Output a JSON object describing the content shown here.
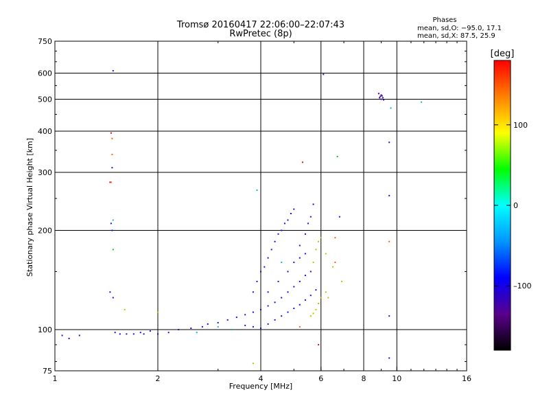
{
  "chart_data": {
    "type": "scatter",
    "title": "Tromsø 20160417 22:06:00–22:07:43",
    "subtitle": "RwPretec (8p)",
    "xlabel": "Frequency [MHz]",
    "ylabel": "Stationary phase Virtual Height [km]",
    "x_scale": "log2",
    "y_scale": "log",
    "xlim": [
      1,
      16
    ],
    "ylim": [
      75,
      750
    ],
    "x_ticks": [
      1,
      2,
      4,
      6,
      8,
      10,
      16
    ],
    "x_tick_labels": [
      "1",
      "2",
      "4",
      "6",
      "8",
      "10",
      "16"
    ],
    "y_ticks": [
      75,
      100,
      200,
      300,
      400,
      500,
      600,
      750
    ],
    "y_tick_labels": [
      "75",
      "100",
      "200",
      "300",
      "400",
      "500",
      "600",
      "750"
    ],
    "grid": true,
    "phases_header": "Phases",
    "phase_stats": [
      "mean, sd,O: −95.0, 17.1",
      "mean, sd,X:  87.5, 25.9"
    ],
    "colorbar": {
      "label": "[deg]",
      "range": [
        -180,
        180
      ],
      "ticks": [
        100,
        0,
        -100
      ],
      "tick_labels": [
        "100",
        "0",
        "–100"
      ],
      "colors": [
        "#000000",
        "#5a008c",
        "#0000ff",
        "#0096ff",
        "#00ffff",
        "#00ff00",
        "#ffff00",
        "#ff8000",
        "#ff0000"
      ]
    },
    "series": [
      {
        "color": "#1010e0",
        "points": [
          [
            1.05,
            96
          ],
          [
            1.1,
            94
          ],
          [
            1.18,
            96
          ],
          [
            1.5,
            98
          ],
          [
            1.55,
            97
          ],
          [
            1.62,
            97
          ],
          [
            1.7,
            97
          ],
          [
            1.78,
            98
          ],
          [
            1.82,
            97
          ],
          [
            1.9,
            99
          ],
          [
            2.0,
            97
          ],
          [
            2.15,
            98
          ],
          [
            2.3,
            100
          ],
          [
            2.5,
            101
          ],
          [
            2.7,
            102
          ],
          [
            2.8,
            104
          ],
          [
            3.0,
            105
          ],
          [
            3.2,
            107
          ],
          [
            3.4,
            109
          ],
          [
            3.6,
            111
          ],
          [
            3.8,
            113
          ],
          [
            4.0,
            115
          ],
          [
            4.2,
            118
          ],
          [
            4.4,
            121
          ],
          [
            4.6,
            125
          ],
          [
            4.8,
            130
          ],
          [
            5.0,
            135
          ],
          [
            5.2,
            140
          ],
          [
            5.4,
            146
          ],
          [
            5.6,
            150
          ],
          [
            3.6,
            103
          ],
          [
            3.8,
            102
          ],
          [
            4.0,
            101
          ],
          [
            4.2,
            104
          ],
          [
            4.4,
            107
          ],
          [
            4.6,
            110
          ],
          [
            4.8,
            113
          ],
          [
            5.0,
            116
          ],
          [
            5.2,
            119
          ],
          [
            5.4,
            123
          ],
          [
            5.6,
            127
          ],
          [
            5.8,
            132
          ],
          [
            3.8,
            130
          ],
          [
            3.9,
            140
          ],
          [
            4.0,
            150
          ],
          [
            4.1,
            155
          ],
          [
            4.2,
            165
          ],
          [
            4.3,
            175
          ],
          [
            4.4,
            185
          ],
          [
            4.5,
            195
          ],
          [
            4.6,
            200
          ],
          [
            4.7,
            210
          ],
          [
            4.8,
            215
          ],
          [
            4.9,
            225
          ],
          [
            5.0,
            232
          ],
          [
            5.2,
            180
          ],
          [
            5.4,
            195
          ],
          [
            5.5,
            210
          ],
          [
            5.6,
            220
          ],
          [
            5.7,
            240
          ],
          [
            4.2,
            130
          ],
          [
            4.5,
            140
          ],
          [
            4.8,
            150
          ],
          [
            5.0,
            160
          ],
          [
            5.2,
            165
          ],
          [
            5.4,
            170
          ],
          [
            1.45,
            130
          ],
          [
            1.48,
            125
          ],
          [
            1.47,
            200
          ],
          [
            1.46,
            210
          ],
          [
            1.47,
            310
          ],
          [
            6.1,
            595
          ],
          [
            1.48,
            610
          ],
          [
            9.5,
            370
          ],
          [
            9.5,
            255
          ],
          [
            9.5,
            110
          ],
          [
            9.5,
            82
          ],
          [
            6.8,
            220
          ]
        ]
      },
      {
        "color": "#c0c000",
        "points": [
          [
            5.6,
            110
          ],
          [
            5.7,
            112
          ],
          [
            5.8,
            115
          ],
          [
            5.9,
            120
          ],
          [
            6.0,
            125
          ],
          [
            6.2,
            130
          ],
          [
            6.3,
            125
          ],
          [
            5.7,
            160
          ],
          [
            5.8,
            175
          ],
          [
            5.9,
            185
          ],
          [
            6.0,
            190
          ],
          [
            6.2,
            170
          ],
          [
            6.5,
            155
          ],
          [
            6.9,
            140
          ],
          [
            3.8,
            79
          ],
          [
            1.6,
            115
          ],
          [
            2.0,
            113
          ]
        ]
      },
      {
        "color": "#00c0c0",
        "points": [
          [
            3.9,
            265
          ],
          [
            2.6,
            98
          ],
          [
            3.0,
            102
          ],
          [
            3.3,
            100
          ],
          [
            9.6,
            470
          ],
          [
            11.8,
            490
          ],
          [
            1.48,
            215
          ],
          [
            4.6,
            160
          ]
        ]
      },
      {
        "color": "#00cc00",
        "points": [
          [
            6.7,
            335
          ],
          [
            1.48,
            175
          ]
        ]
      },
      {
        "color": "#ff6000",
        "points": [
          [
            1.47,
            380
          ],
          [
            1.47,
            340
          ],
          [
            6.6,
            190
          ],
          [
            6.6,
            160
          ],
          [
            5.2,
            102
          ],
          [
            9.5,
            185
          ],
          [
            1.46,
            280
          ]
        ]
      },
      {
        "color": "#e01010",
        "points": [
          [
            5.3,
            322
          ],
          [
            1.46,
            395
          ],
          [
            5.9,
            90
          ],
          [
            1.45,
            280
          ]
        ]
      },
      {
        "color": "#3a00a0",
        "points": [
          [
            8.9,
            505
          ],
          [
            8.95,
            510
          ],
          [
            9.0,
            500
          ],
          [
            9.05,
            512
          ],
          [
            9.1,
            505
          ],
          [
            9.15,
            498
          ],
          [
            8.85,
            520
          ],
          [
            9.0,
            515
          ]
        ]
      }
    ]
  }
}
